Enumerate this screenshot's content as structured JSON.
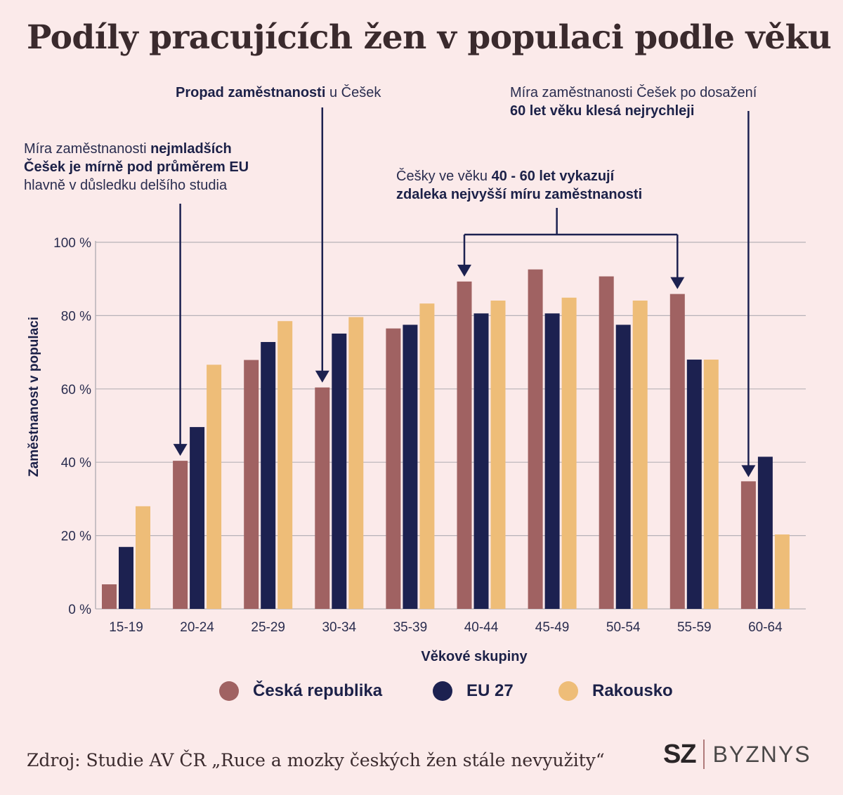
{
  "title": "Podíly pracujících žen v populaci podle věku",
  "annotations": {
    "a1": {
      "pre": "Míra zaměstnanosti ",
      "bold1": "nejmladších",
      "bold2": "Češek je mírně pod průměrem EU",
      "line3": "hlavně v důsledku delšího studia"
    },
    "a2": {
      "bold": "Propad zaměstnanosti",
      "post": " u Češek"
    },
    "a3": {
      "pre": "Češky ve věku ",
      "bold1": "40 - 60 let vykazují",
      "bold2": "zdaleka nejvyšší míru zaměstnanosti"
    },
    "a4": {
      "line1": "Míra zaměstnanosti Češek po dosažení",
      "bold": "60 let věku klesá nejrychleji"
    }
  },
  "colors": {
    "cz": "#a06262",
    "eu": "#1c2150",
    "at": "#eebd78",
    "grid": "#b7b2b8",
    "arrow": "#1c2150"
  },
  "legend": [
    {
      "label": "Česká republika",
      "color": "#a06262"
    },
    {
      "label": "EU 27",
      "color": "#1c2150"
    },
    {
      "label": "Rakousko",
      "color": "#eebd78"
    }
  ],
  "source": "Zdroj: Studie AV ČR „Ruce a mozky českých žen stále nevyužity“",
  "logo": {
    "sz": "SZ",
    "byznys": "BYZNYS"
  },
  "chart_data": {
    "type": "bar",
    "categories": [
      "15-19",
      "20-24",
      "25-29",
      "30-34",
      "35-39",
      "40-44",
      "45-49",
      "50-54",
      "55-59",
      "60-64"
    ],
    "series": [
      {
        "name": "Česká republika",
        "values": [
          6.7,
          40.4,
          67.9,
          60.4,
          76.5,
          89.3,
          92.6,
          90.7,
          85.9,
          34.8
        ]
      },
      {
        "name": "EU 27",
        "values": [
          16.9,
          49.6,
          72.8,
          75.1,
          77.5,
          80.6,
          80.6,
          77.5,
          68.0,
          41.5
        ]
      },
      {
        "name": "Rakousko",
        "values": [
          28.0,
          66.6,
          78.5,
          79.6,
          83.3,
          84.1,
          84.9,
          84.1,
          68.0,
          20.3
        ]
      }
    ],
    "yticks": [
      "0 %",
      "20 %",
      "40 %",
      "60 %",
      "80 %",
      "100 %"
    ],
    "ytick_values": [
      0,
      20,
      40,
      60,
      80,
      100
    ],
    "ylim": [
      0,
      100
    ],
    "xlabel": "Věkové skupiny",
    "ylabel": "Zaměstnanost v populaci",
    "grid": true,
    "legend_position": "bottom"
  }
}
